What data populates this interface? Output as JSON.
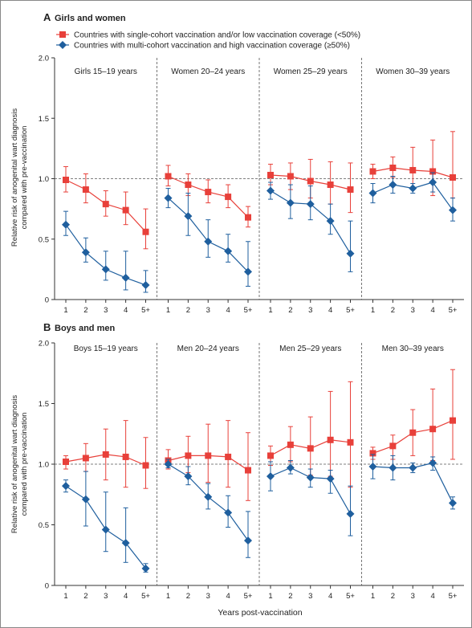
{
  "figure": {
    "legend": {
      "red": "Countries with single-cohort vaccination and/or low vaccination coverage (<50%)",
      "blue": "Countries with multi-cohort vaccination and high vaccination coverage (≥50%)"
    },
    "xlabel": "Years post-vaccination",
    "ylabel_line1": "Relative risk of anogenital wart diagnosis",
    "ylabel_line2": "compared with pre-vaccination",
    "colors": {
      "red": "#e8403a",
      "blue": "#1f5f9e",
      "reference": "#555555",
      "divider": "#555555"
    }
  },
  "chart_data": [
    {
      "type": "line",
      "panel_letter": "A",
      "title": "Girls and women",
      "ylim": [
        0,
        2.0
      ],
      "yticks": [
        "0",
        "0.5",
        "1.0",
        "1.5",
        "2.0"
      ],
      "reference_line": 1.0,
      "x_ticks": [
        "1",
        "2",
        "3",
        "4",
        "5+"
      ],
      "groups": [
        {
          "label": "Girls 15–19 years",
          "red": {
            "y": [
              0.99,
              0.91,
              0.79,
              0.74,
              0.56
            ],
            "lo": [
              0.89,
              0.8,
              0.69,
              0.62,
              0.42
            ],
            "hi": [
              1.1,
              1.04,
              0.9,
              0.89,
              0.75
            ]
          },
          "blue": {
            "y": [
              0.62,
              0.39,
              0.25,
              0.18,
              0.12
            ],
            "lo": [
              0.53,
              0.31,
              0.16,
              0.08,
              0.06
            ],
            "hi": [
              0.73,
              0.51,
              0.4,
              0.4,
              0.24
            ]
          }
        },
        {
          "label": "Women 20–24 years",
          "red": {
            "y": [
              1.02,
              0.95,
              0.89,
              0.85,
              0.68
            ],
            "lo": [
              0.94,
              0.86,
              0.8,
              0.76,
              0.6
            ],
            "hi": [
              1.11,
              1.04,
              0.99,
              0.95,
              0.77
            ]
          },
          "blue": {
            "y": [
              0.84,
              0.69,
              0.48,
              0.4,
              0.23
            ],
            "lo": [
              0.76,
              0.53,
              0.35,
              0.31,
              0.11
            ],
            "hi": [
              0.92,
              0.88,
              0.66,
              0.54,
              0.48
            ]
          }
        },
        {
          "label": "Women 25–29 years",
          "red": {
            "y": [
              1.03,
              1.02,
              0.98,
              0.95,
              0.91
            ],
            "lo": [
              0.95,
              0.91,
              0.84,
              0.79,
              0.72
            ],
            "hi": [
              1.12,
              1.13,
              1.16,
              1.14,
              1.13
            ]
          },
          "blue": {
            "y": [
              0.9,
              0.8,
              0.79,
              0.65,
              0.38
            ],
            "lo": [
              0.83,
              0.67,
              0.66,
              0.54,
              0.23
            ],
            "hi": [
              0.97,
              0.95,
              0.94,
              0.79,
              0.65
            ]
          }
        },
        {
          "label": "Women 30–39 years",
          "red": {
            "y": [
              1.06,
              1.09,
              1.07,
              1.06,
              1.01
            ],
            "lo": [
              1.0,
              1.01,
              0.91,
              0.86,
              0.84
            ],
            "hi": [
              1.12,
              1.18,
              1.26,
              1.32,
              1.39
            ]
          },
          "blue": {
            "y": [
              0.88,
              0.95,
              0.92,
              0.97,
              0.74
            ],
            "lo": [
              0.8,
              0.88,
              0.88,
              0.89,
              0.65
            ],
            "hi": [
              0.96,
              1.02,
              0.96,
              1.05,
              0.84
            ]
          }
        }
      ]
    },
    {
      "type": "line",
      "panel_letter": "B",
      "title": "Boys and men",
      "ylim": [
        0,
        2.0
      ],
      "yticks": [
        "0",
        "0.5",
        "1.0",
        "1.5",
        "2.0"
      ],
      "reference_line": 1.0,
      "x_ticks": [
        "1",
        "2",
        "3",
        "4",
        "5+"
      ],
      "groups": [
        {
          "label": "Boys 15–19 years",
          "red": {
            "y": [
              1.02,
              1.05,
              1.08,
              1.06,
              0.99
            ],
            "lo": [
              0.96,
              0.94,
              0.87,
              0.81,
              0.8
            ],
            "hi": [
              1.07,
              1.17,
              1.29,
              1.36,
              1.22
            ]
          },
          "blue": {
            "y": [
              0.82,
              0.71,
              0.46,
              0.35,
              0.14
            ],
            "lo": [
              0.77,
              0.49,
              0.28,
              0.19,
              0.11
            ],
            "hi": [
              0.87,
              0.94,
              0.77,
              0.64,
              0.18
            ]
          }
        },
        {
          "label": "Men 20–24 years",
          "red": {
            "y": [
              1.03,
              1.07,
              1.07,
              1.06,
              0.95
            ],
            "lo": [
              0.96,
              0.93,
              0.85,
              0.81,
              0.7
            ],
            "hi": [
              1.12,
              1.23,
              1.33,
              1.36,
              1.26
            ]
          },
          "blue": {
            "y": [
              1.0,
              0.9,
              0.73,
              0.6,
              0.37
            ],
            "lo": [
              0.97,
              0.83,
              0.63,
              0.48,
              0.23
            ],
            "hi": [
              1.04,
              0.98,
              0.84,
              0.74,
              0.61
            ]
          }
        },
        {
          "label": "Men 25–29 years",
          "red": {
            "y": [
              1.07,
              1.16,
              1.13,
              1.2,
              1.18
            ],
            "lo": [
              0.99,
              1.02,
              0.91,
              0.9,
              0.81
            ],
            "hi": [
              1.15,
              1.31,
              1.39,
              1.6,
              1.68
            ]
          },
          "blue": {
            "y": [
              0.9,
              0.97,
              0.89,
              0.88,
              0.59
            ],
            "lo": [
              0.78,
              0.92,
              0.81,
              0.76,
              0.41
            ],
            "hi": [
              1.02,
              1.03,
              0.96,
              0.95,
              0.82
            ]
          }
        },
        {
          "label": "Men 30–39 years",
          "red": {
            "y": [
              1.09,
              1.15,
              1.26,
              1.29,
              1.36
            ],
            "lo": [
              1.04,
              1.04,
              1.07,
              1.03,
              1.04
            ],
            "hi": [
              1.14,
              1.24,
              1.45,
              1.62,
              1.78
            ]
          },
          "blue": {
            "y": [
              0.98,
              0.97,
              0.97,
              1.01,
              0.68
            ],
            "lo": [
              0.88,
              0.87,
              0.93,
              0.95,
              0.63
            ],
            "hi": [
              1.08,
              1.07,
              1.01,
              1.06,
              0.73
            ]
          }
        }
      ]
    }
  ]
}
